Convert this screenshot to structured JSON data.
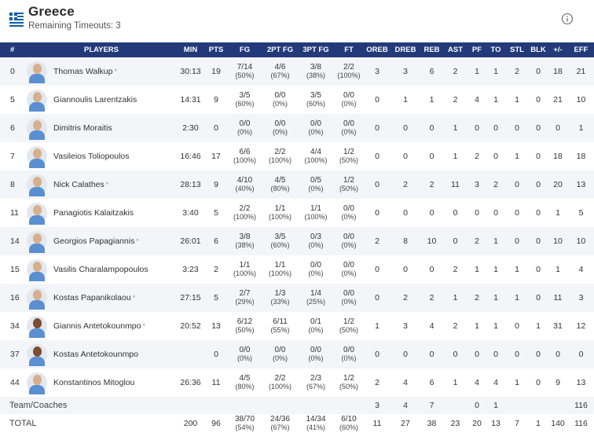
{
  "team": {
    "name": "Greece",
    "timeouts_label": "Remaining Timeouts: 3"
  },
  "columns": [
    "#",
    "PLAYERS",
    "MIN",
    "PTS",
    "FG",
    "2PT FG",
    "3PT FG",
    "FT",
    "OREB",
    "DREB",
    "REB",
    "AST",
    "PF",
    "TO",
    "STL",
    "BLK",
    "+/-",
    "EFF"
  ],
  "players": [
    {
      "num": "0",
      "name": "Thomas Walkup",
      "star": "*",
      "min": "30:13",
      "pts": "19",
      "fg": "7/14",
      "fg_pct": "(50%)",
      "fg2": "4/6",
      "fg2_pct": "(67%)",
      "fg3": "3/8",
      "fg3_pct": "(38%)",
      "ft": "2/2",
      "ft_pct": "(100%)",
      "oreb": "3",
      "dreb": "3",
      "reb": "6",
      "ast": "2",
      "pf": "1",
      "to": "1",
      "stl": "2",
      "blk": "0",
      "pm": "18",
      "eff": "21"
    },
    {
      "num": "5",
      "name": "Giannoulis Larentzakis",
      "star": "",
      "min": "14:31",
      "pts": "9",
      "fg": "3/5",
      "fg_pct": "(60%)",
      "fg2": "0/0",
      "fg2_pct": "(0%)",
      "fg3": "3/5",
      "fg3_pct": "(60%)",
      "ft": "0/0",
      "ft_pct": "(0%)",
      "oreb": "0",
      "dreb": "1",
      "reb": "1",
      "ast": "2",
      "pf": "4",
      "to": "1",
      "stl": "1",
      "blk": "0",
      "pm": "21",
      "eff": "10"
    },
    {
      "num": "6",
      "name": "Dimitris Moraitis",
      "star": "",
      "min": "2:30",
      "pts": "0",
      "fg": "0/0",
      "fg_pct": "(0%)",
      "fg2": "0/0",
      "fg2_pct": "(0%)",
      "fg3": "0/0",
      "fg3_pct": "(0%)",
      "ft": "0/0",
      "ft_pct": "(0%)",
      "oreb": "0",
      "dreb": "0",
      "reb": "0",
      "ast": "1",
      "pf": "0",
      "to": "0",
      "stl": "0",
      "blk": "0",
      "pm": "0",
      "eff": "1"
    },
    {
      "num": "7",
      "name": "Vasileios Toliopoulos",
      "star": "",
      "min": "16:46",
      "pts": "17",
      "fg": "6/6",
      "fg_pct": "(100%)",
      "fg2": "2/2",
      "fg2_pct": "(100%)",
      "fg3": "4/4",
      "fg3_pct": "(100%)",
      "ft": "1/2",
      "ft_pct": "(50%)",
      "oreb": "0",
      "dreb": "0",
      "reb": "0",
      "ast": "1",
      "pf": "2",
      "to": "0",
      "stl": "1",
      "blk": "0",
      "pm": "18",
      "eff": "18"
    },
    {
      "num": "8",
      "name": "Nick Calathes",
      "star": "*",
      "min": "28:13",
      "pts": "9",
      "fg": "4/10",
      "fg_pct": "(40%)",
      "fg2": "4/5",
      "fg2_pct": "(80%)",
      "fg3": "0/5",
      "fg3_pct": "(0%)",
      "ft": "1/2",
      "ft_pct": "(50%)",
      "oreb": "0",
      "dreb": "2",
      "reb": "2",
      "ast": "11",
      "pf": "3",
      "to": "2",
      "stl": "0",
      "blk": "0",
      "pm": "20",
      "eff": "13"
    },
    {
      "num": "11",
      "name": "Panagiotis Kalaitzakis",
      "star": "",
      "min": "3:40",
      "pts": "5",
      "fg": "2/2",
      "fg_pct": "(100%)",
      "fg2": "1/1",
      "fg2_pct": "(100%)",
      "fg3": "1/1",
      "fg3_pct": "(100%)",
      "ft": "0/0",
      "ft_pct": "(0%)",
      "oreb": "0",
      "dreb": "0",
      "reb": "0",
      "ast": "0",
      "pf": "0",
      "to": "0",
      "stl": "0",
      "blk": "0",
      "pm": "1",
      "eff": "5"
    },
    {
      "num": "14",
      "name": "Georgios Papagiannis",
      "star": "*",
      "min": "26:01",
      "pts": "6",
      "fg": "3/8",
      "fg_pct": "(38%)",
      "fg2": "3/5",
      "fg2_pct": "(60%)",
      "fg3": "0/3",
      "fg3_pct": "(0%)",
      "ft": "0/0",
      "ft_pct": "(0%)",
      "oreb": "2",
      "dreb": "8",
      "reb": "10",
      "ast": "0",
      "pf": "2",
      "to": "1",
      "stl": "0",
      "blk": "0",
      "pm": "10",
      "eff": "10"
    },
    {
      "num": "15",
      "name": "Vasilis Charalampopoulos",
      "star": "",
      "min": "3:23",
      "pts": "2",
      "fg": "1/1",
      "fg_pct": "(100%)",
      "fg2": "1/1",
      "fg2_pct": "(100%)",
      "fg3": "0/0",
      "fg3_pct": "(0%)",
      "ft": "0/0",
      "ft_pct": "(0%)",
      "oreb": "0",
      "dreb": "0",
      "reb": "0",
      "ast": "2",
      "pf": "1",
      "to": "1",
      "stl": "1",
      "blk": "0",
      "pm": "1",
      "eff": "4"
    },
    {
      "num": "16",
      "name": "Kostas Papanikolaou",
      "star": "*",
      "min": "27:15",
      "pts": "5",
      "fg": "2/7",
      "fg_pct": "(29%)",
      "fg2": "1/3",
      "fg2_pct": "(33%)",
      "fg3": "1/4",
      "fg3_pct": "(25%)",
      "ft": "0/0",
      "ft_pct": "(0%)",
      "oreb": "0",
      "dreb": "2",
      "reb": "2",
      "ast": "1",
      "pf": "2",
      "to": "1",
      "stl": "1",
      "blk": "0",
      "pm": "11",
      "eff": "3"
    },
    {
      "num": "34",
      "name": "Giannis Antetokounmpo",
      "star": "*",
      "min": "20:52",
      "pts": "13",
      "fg": "6/12",
      "fg_pct": "(50%)",
      "fg2": "6/11",
      "fg2_pct": "(55%)",
      "fg3": "0/1",
      "fg3_pct": "(0%)",
      "ft": "1/2",
      "ft_pct": "(50%)",
      "oreb": "1",
      "dreb": "3",
      "reb": "4",
      "ast": "2",
      "pf": "1",
      "to": "1",
      "stl": "0",
      "blk": "1",
      "pm": "31",
      "eff": "12"
    },
    {
      "num": "37",
      "name": "Kostas Antetokounmpo",
      "star": "",
      "min": "",
      "pts": "0",
      "fg": "0/0",
      "fg_pct": "(0%)",
      "fg2": "0/0",
      "fg2_pct": "(0%)",
      "fg3": "0/0",
      "fg3_pct": "(0%)",
      "ft": "0/0",
      "ft_pct": "(0%)",
      "oreb": "0",
      "dreb": "0",
      "reb": "0",
      "ast": "0",
      "pf": "0",
      "to": "0",
      "stl": "0",
      "blk": "0",
      "pm": "0",
      "eff": "0"
    },
    {
      "num": "44",
      "name": "Konstantinos Mitoglou",
      "star": "",
      "min": "26:36",
      "pts": "11",
      "fg": "4/5",
      "fg_pct": "(80%)",
      "fg2": "2/2",
      "fg2_pct": "(100%)",
      "fg3": "2/3",
      "fg3_pct": "(67%)",
      "ft": "1/2",
      "ft_pct": "(50%)",
      "oreb": "2",
      "dreb": "4",
      "reb": "6",
      "ast": "1",
      "pf": "4",
      "to": "4",
      "stl": "1",
      "blk": "0",
      "pm": "9",
      "eff": "13"
    }
  ],
  "team_coaches": {
    "label": "Team/Coaches",
    "oreb": "3",
    "dreb": "4",
    "reb": "7",
    "ast": "",
    "pf": "0",
    "to": "1",
    "stl": "",
    "blk": "",
    "pm": "",
    "eff": "116"
  },
  "total": {
    "label": "TOTAL",
    "min": "200",
    "pts": "96",
    "fg": "38/70",
    "fg_pct": "(54%)",
    "fg2": "24/36",
    "fg2_pct": "(67%)",
    "fg3": "14/34",
    "fg3_pct": "(41%)",
    "ft": "6/10",
    "ft_pct": "(60%)",
    "oreb": "11",
    "dreb": "27",
    "reb": "38",
    "ast": "23",
    "pf": "20",
    "to": "13",
    "stl": "7",
    "blk": "1",
    "pm": "140",
    "eff": "116"
  },
  "avatar_tones": [
    "light",
    "light",
    "light",
    "light",
    "light",
    "light",
    "light",
    "light",
    "light",
    "dark",
    "dark",
    "light"
  ]
}
